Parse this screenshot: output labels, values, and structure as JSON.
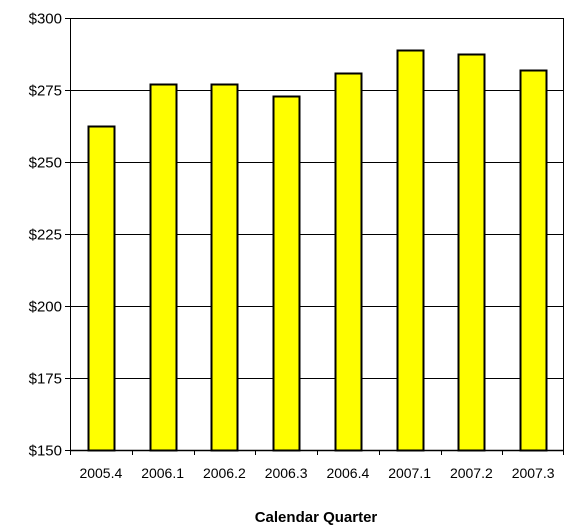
{
  "chart_data": {
    "type": "bar",
    "title": "",
    "xlabel": "Calendar Quarter",
    "ylabel": "",
    "categories": [
      "2005.4",
      "2006.1",
      "2006.2",
      "2006.3",
      "2006.4",
      "2007.1",
      "2007.2",
      "2007.3"
    ],
    "values": [
      262.5,
      277,
      277,
      273,
      281,
      289,
      287.5,
      282
    ],
    "ylim": [
      150,
      300
    ],
    "yticks": [
      150,
      175,
      200,
      225,
      250,
      275,
      300
    ],
    "ytick_labels": [
      "$150",
      "$175",
      "$200",
      "$225",
      "$250",
      "$275",
      "$300"
    ],
    "grid": true,
    "legend": "none",
    "colors": {
      "bar_fill": "#ffff00",
      "bar_stroke": "#000000",
      "grid": "#000000"
    }
  }
}
